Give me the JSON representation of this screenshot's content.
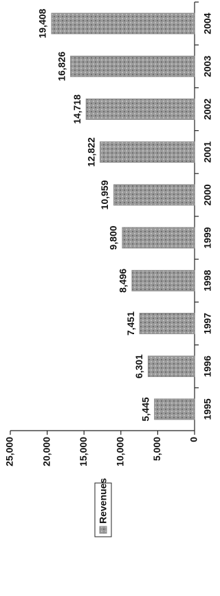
{
  "chart_data": {
    "type": "bar",
    "categories": [
      "1995",
      "1996",
      "1997",
      "1998",
      "1999",
      "2000",
      "2001",
      "2002",
      "2003",
      "2004"
    ],
    "series": [
      {
        "name": "Revenues",
        "color": "#8a8a8a",
        "values": [
          5445,
          6301,
          7451,
          8496,
          9800,
          10959,
          12822,
          14718,
          16826,
          19408
        ],
        "value_labels": [
          "5,445",
          "6,301",
          "7,451",
          "8,496",
          "9,800",
          "10,959",
          "12,822",
          "14,718",
          "16,826",
          "19,408"
        ]
      }
    ],
    "ylim": [
      0,
      25000
    ],
    "yticks": [
      0,
      {
        "value": 5000,
        "label": "5,000"
      },
      {
        "value": 10000,
        "label": "10,000"
      },
      {
        "value": 15000,
        "label": "15,000"
      },
      {
        "value": 20000,
        "label": "20,000"
      },
      {
        "value": 25000,
        "label": "25,000"
      }
    ],
    "legend": "left"
  }
}
